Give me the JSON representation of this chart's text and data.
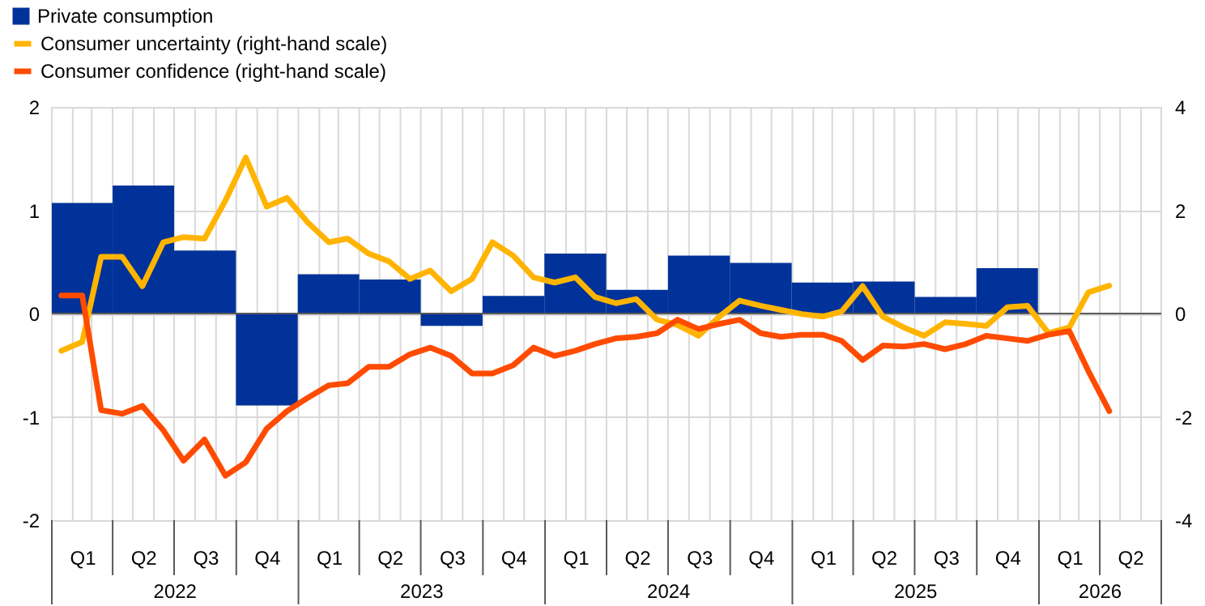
{
  "chart_data": {
    "type": "bar",
    "legend": "top left",
    "grid": true,
    "xlim": [
      "2022-01-01",
      "2026-07-01"
    ],
    "xticks": [
      {
        "value": "2022-01-01",
        "label": null
      },
      {
        "value": "2022-02-01",
        "label": null
      },
      {
        "value": "2022-03-01",
        "label": null
      },
      {
        "value": "2022-04-01",
        "label": null
      },
      {
        "value": "2022-05-01",
        "label": null
      },
      {
        "value": "2022-06-01",
        "label": null
      },
      {
        "value": "2022-07-01",
        "label": null
      },
      {
        "value": "2022-08-01",
        "label": null
      },
      {
        "value": "2022-09-01",
        "label": null
      },
      {
        "value": "2022-10-01",
        "label": null
      },
      {
        "value": "2022-11-01",
        "label": null
      },
      {
        "value": "2022-12-01",
        "label": null
      },
      {
        "value": "2023-01-01",
        "label": null
      },
      {
        "value": "2023-02-01",
        "label": null
      },
      {
        "value": "2023-03-01",
        "label": null
      },
      {
        "value": "2023-04-01",
        "label": null
      },
      {
        "value": "2023-05-01",
        "label": null
      },
      {
        "value": "2023-06-01",
        "label": null
      },
      {
        "value": "2023-07-01",
        "label": null
      },
      {
        "value": "2023-08-01",
        "label": null
      },
      {
        "value": "2023-09-01",
        "label": null
      },
      {
        "value": "2023-10-01",
        "label": null
      },
      {
        "value": "2023-11-01",
        "label": null
      },
      {
        "value": "2023-12-01",
        "label": null
      },
      {
        "value": "2024-01-01",
        "label": null
      },
      {
        "value": "2024-02-01",
        "label": null
      },
      {
        "value": "2024-03-01",
        "label": null
      },
      {
        "value": "2024-04-01",
        "label": null
      },
      {
        "value": "2024-05-01",
        "label": null
      },
      {
        "value": "2024-06-01",
        "label": null
      },
      {
        "value": "2024-07-01",
        "label": null
      },
      {
        "value": "2024-08-01",
        "label": null
      },
      {
        "value": "2024-09-01",
        "label": null
      },
      {
        "value": "2024-10-01",
        "label": null
      },
      {
        "value": "2024-11-01",
        "label": null
      },
      {
        "value": "2024-12-01",
        "label": null
      },
      {
        "value": "2025-01-01",
        "label": null
      },
      {
        "value": "2025-02-01",
        "label": null
      },
      {
        "value": "2025-03-01",
        "label": null
      },
      {
        "value": "2025-04-01",
        "label": null
      },
      {
        "value": "2025-05-01",
        "label": null
      },
      {
        "value": "2025-06-01",
        "label": null
      },
      {
        "value": "2025-07-01",
        "label": null
      },
      {
        "value": "2025-08-01",
        "label": null
      },
      {
        "value": "2025-09-01",
        "label": null
      },
      {
        "value": "2025-10-01",
        "label": null
      },
      {
        "value": "2025-11-01",
        "label": null
      },
      {
        "value": "2025-12-01",
        "label": null
      },
      {
        "value": "2026-01-01",
        "label": null
      },
      {
        "value": "2026-02-01",
        "label": null
      },
      {
        "value": "2026-03-01",
        "label": null
      },
      {
        "value": "2026-04-01",
        "label": null
      },
      {
        "value": "2026-05-01",
        "label": null
      },
      {
        "value": "2026-06-01",
        "label": null
      },
      {
        "value": "2026-07-01",
        "label": null
      },
      {
        "value": "2022-02-15",
        "label": "Q1"
      },
      {
        "value": "2022-05-16",
        "label": "Q2"
      },
      {
        "value": "2022-08-16",
        "label": "Q3"
      },
      {
        "value": "2022-11-15",
        "label": "Q4"
      },
      {
        "value": "2023-02-15",
        "label": "Q1"
      },
      {
        "value": "2023-05-16",
        "label": "Q2"
      },
      {
        "value": "2023-08-16",
        "label": "Q3"
      },
      {
        "value": "2023-11-15",
        "label": "Q4"
      },
      {
        "value": "2024-02-15",
        "label": "Q1"
      },
      {
        "value": "2024-05-16",
        "label": "Q2"
      },
      {
        "value": "2024-08-16",
        "label": "Q3"
      },
      {
        "value": "2024-11-15",
        "label": "Q4"
      },
      {
        "value": "2025-02-15",
        "label": "Q1"
      },
      {
        "value": "2025-05-16",
        "label": "Q2"
      },
      {
        "value": "2025-08-16",
        "label": "Q3"
      },
      {
        "value": "2025-11-15",
        "label": "Q4"
      },
      {
        "value": "2026-02-15",
        "label": "Q1"
      },
      {
        "value": "2026-05-16",
        "label": "Q2"
      }
    ],
    "ylim": [
      -2,
      2
    ],
    "yticks": [
      -2,
      -1,
      0,
      1,
      2
    ],
    "y2lim": [
      -4,
      4
    ],
    "y2ticks": [
      -4,
      -2,
      0,
      2,
      4
    ],
    "annotations": [
      "2022",
      "2023",
      "2024",
      "2025",
      "2026"
    ],
    "series": [
      {
        "name": "Private consumption",
        "color": "#003299",
        "x": [
          "2022-02-15",
          "2022-05-16",
          "2022-08-16",
          "2022-11-15",
          "2023-02-15",
          "2023-05-16",
          "2023-08-16",
          "2023-11-15",
          "2024-02-15",
          "2024-05-16",
          "2024-08-16",
          "2024-11-15",
          "2025-02-15",
          "2025-05-16",
          "2025-08-16",
          "2025-11-15"
        ],
        "values": [
          1.07,
          1.24,
          0.61,
          -0.89,
          0.38,
          0.33,
          -0.12,
          0.17,
          0.58,
          0.23,
          0.56,
          0.49,
          0.3,
          0.31,
          0.16,
          0.44
        ]
      },
      {
        "name": "Consumer uncertainty (right-hand scale)",
        "type": "line",
        "axis": "y2",
        "color": "#ffb400",
        "x": [
          "2022-01-15",
          "2022-02-15",
          "2022-03-15",
          "2022-04-15",
          "2022-05-15",
          "2022-06-15",
          "2022-07-15",
          "2022-08-15",
          "2022-09-15",
          "2022-10-15",
          "2022-11-15",
          "2022-12-15",
          "2023-01-15",
          "2023-02-15",
          "2023-03-15",
          "2023-04-15",
          "2023-05-15",
          "2023-06-15",
          "2023-07-15",
          "2023-08-15",
          "2023-09-15",
          "2023-10-15",
          "2023-11-15",
          "2023-12-15",
          "2024-01-15",
          "2024-02-15",
          "2024-03-15",
          "2024-04-15",
          "2024-05-15",
          "2024-06-15",
          "2024-07-15",
          "2024-08-15",
          "2024-09-15",
          "2024-10-15",
          "2024-11-15",
          "2024-12-15",
          "2025-01-15",
          "2025-02-15",
          "2025-03-15",
          "2025-04-15",
          "2025-05-15",
          "2025-06-15",
          "2025-07-15",
          "2025-08-15",
          "2025-09-15",
          "2025-10-15",
          "2025-11-15",
          "2025-12-15",
          "2026-01-15",
          "2026-02-15",
          "2026-03-15",
          "2026-04-15"
        ],
        "values": [
          -0.72,
          -0.55,
          1.1,
          1.1,
          0.53,
          1.38,
          1.48,
          1.45,
          2.19,
          3.02,
          2.07,
          2.24,
          1.76,
          1.38,
          1.45,
          1.16,
          1.01,
          0.67,
          0.83,
          0.43,
          0.67,
          1.38,
          1.12,
          0.7,
          0.6,
          0.7,
          0.32,
          0.2,
          0.28,
          -0.12,
          -0.22,
          -0.43,
          -0.06,
          0.25,
          0.15,
          0.07,
          -0.01,
          -0.06,
          0.04,
          0.53,
          -0.06,
          -0.27,
          -0.43,
          -0.17,
          -0.2,
          -0.24,
          0.12,
          0.15,
          -0.38,
          -0.27,
          0.41,
          0.54
        ]
      },
      {
        "name": "Consumer confidence (right-hand scale)",
        "type": "line",
        "axis": "y2",
        "color": "#ff4b00",
        "x": [
          "2022-01-15",
          "2022-02-15",
          "2022-03-15",
          "2022-04-15",
          "2022-05-15",
          "2022-06-15",
          "2022-07-15",
          "2022-08-15",
          "2022-09-15",
          "2022-10-15",
          "2022-11-15",
          "2022-12-15",
          "2023-01-15",
          "2023-02-15",
          "2023-03-15",
          "2023-04-15",
          "2023-05-15",
          "2023-06-15",
          "2023-07-15",
          "2023-08-15",
          "2023-09-15",
          "2023-10-15",
          "2023-11-15",
          "2023-12-15",
          "2024-01-15",
          "2024-02-15",
          "2024-03-15",
          "2024-04-15",
          "2024-05-15",
          "2024-06-15",
          "2024-07-15",
          "2024-08-15",
          "2024-09-15",
          "2024-10-15",
          "2024-11-15",
          "2024-12-15",
          "2025-01-15",
          "2025-02-15",
          "2025-03-15",
          "2025-04-15",
          "2025-05-15",
          "2025-06-15",
          "2025-07-15",
          "2025-08-15",
          "2025-09-15",
          "2025-10-15",
          "2025-11-15",
          "2025-12-15",
          "2026-01-15",
          "2026-02-15",
          "2026-03-15",
          "2026-04-15"
        ],
        "values": [
          0.35,
          0.35,
          -1.87,
          -1.94,
          -1.79,
          -2.26,
          -2.85,
          -2.44,
          -3.14,
          -2.88,
          -2.23,
          -1.89,
          -1.63,
          -1.39,
          -1.35,
          -1.03,
          -1.03,
          -0.79,
          -0.66,
          -0.82,
          -1.16,
          -1.16,
          -1.0,
          -0.66,
          -0.82,
          -0.72,
          -0.59,
          -0.48,
          -0.45,
          -0.38,
          -0.12,
          -0.3,
          -0.2,
          -0.12,
          -0.38,
          -0.45,
          -0.41,
          -0.41,
          -0.53,
          -0.9,
          -0.62,
          -0.64,
          -0.59,
          -0.69,
          -0.59,
          -0.43,
          -0.48,
          -0.53,
          -0.41,
          -0.34,
          -1.11,
          -1.89
        ]
      }
    ]
  }
}
